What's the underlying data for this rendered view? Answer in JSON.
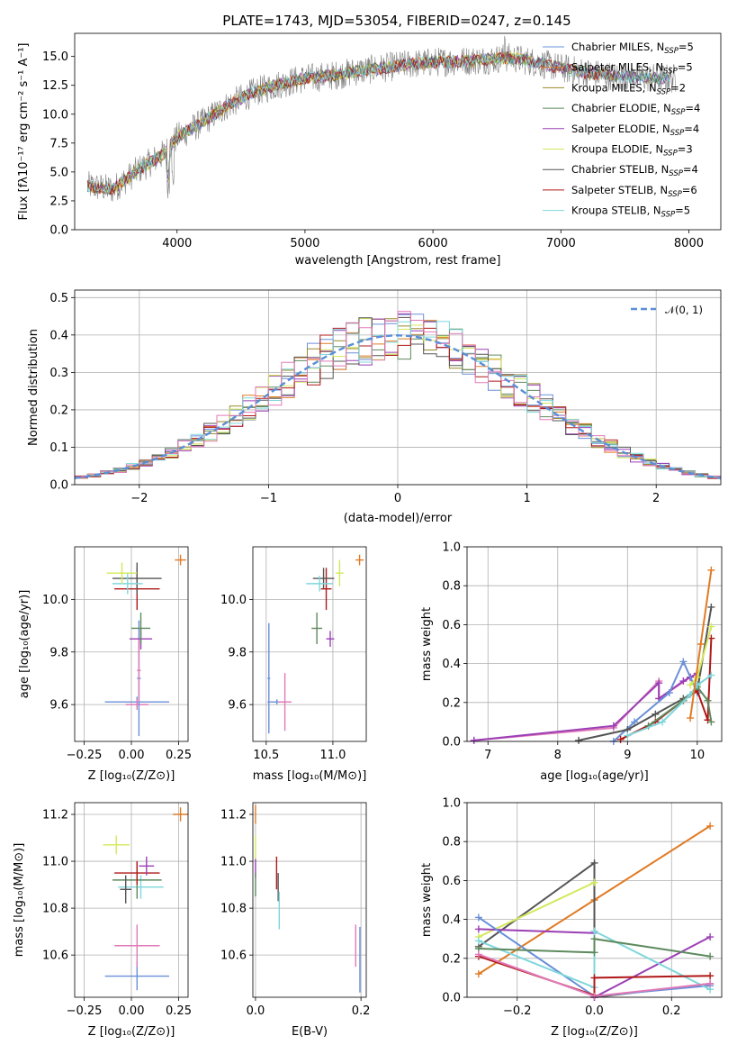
{
  "figure": {
    "title": "PLATE=1743, MJD=53054, FIBERID=0247, z=0.145"
  },
  "colors": {
    "c1": "#6a8fd8",
    "c2": "#e07b24",
    "c3": "#9a8a2a",
    "c4": "#5e8a5e",
    "c5": "#9b3fb5",
    "c6": "#d4e85a",
    "c7": "#555555",
    "c8": "#b01818",
    "c9": "#7fd7dc",
    "pink": "#e07ab8"
  },
  "chart_data": [
    {
      "id": "spectrum",
      "type": "line",
      "xlabel": "wavelength [Angstrom, rest frame]",
      "ylabel": "Flux [fλ10⁻¹⁷ erg cm⁻² s⁻¹ A⁻¹]",
      "xlim": [
        3200,
        8250
      ],
      "ylim": [
        0,
        17
      ],
      "xticks": [
        4000,
        5000,
        6000,
        7000,
        8000
      ],
      "yticks": [
        0.0,
        2.5,
        5.0,
        7.5,
        10.0,
        12.5,
        15.0
      ],
      "xtick_labels": [
        "4000",
        "5000",
        "6000",
        "7000",
        "8000"
      ],
      "ytick_labels": [
        "0.0",
        "2.5",
        "5.0",
        "7.5",
        "10.0",
        "12.5",
        "15.0"
      ],
      "continuum": [
        [
          3300,
          3.8
        ],
        [
          3500,
          3.5
        ],
        [
          3700,
          5.2
        ],
        [
          3900,
          6.6
        ],
        [
          4000,
          8.0
        ],
        [
          4200,
          9.3
        ],
        [
          4400,
          10.8
        ],
        [
          4600,
          11.9
        ],
        [
          4800,
          12.6
        ],
        [
          5000,
          13.1
        ],
        [
          5200,
          13.3
        ],
        [
          5400,
          13.7
        ],
        [
          5600,
          14.0
        ],
        [
          5800,
          14.3
        ],
        [
          6000,
          14.5
        ],
        [
          6200,
          14.6
        ],
        [
          6400,
          14.7
        ],
        [
          6600,
          14.9
        ],
        [
          6800,
          14.5
        ],
        [
          7000,
          14.0
        ],
        [
          7200,
          13.6
        ],
        [
          7400,
          13.3
        ],
        [
          7600,
          13.2
        ],
        [
          7800,
          13.1
        ]
      ],
      "series": [
        {
          "name": "Chabrier MILES, N",
          "sub": "SSP",
          "suffix": "=5",
          "color": "#6a8fd8"
        },
        {
          "name": "Salpeter MILES, N",
          "sub": "SSP",
          "suffix": "=5",
          "color": "#e07b24"
        },
        {
          "name": "Kroupa MILES, N",
          "sub": "SSP",
          "suffix": "=2",
          "color": "#9a8a2a"
        },
        {
          "name": "Chabrier ELODIE, N",
          "sub": "SSP",
          "suffix": "=4",
          "color": "#5e8a5e"
        },
        {
          "name": "Salpeter ELODIE, N",
          "sub": "SSP",
          "suffix": "=4",
          "color": "#9b3fb5"
        },
        {
          "name": "Kroupa ELODIE, N",
          "sub": "SSP",
          "suffix": "=3",
          "color": "#d4e85a"
        },
        {
          "name": "Chabrier STELIB, N",
          "sub": "SSP",
          "suffix": "=4",
          "color": "#555555"
        },
        {
          "name": "Salpeter STELIB, N",
          "sub": "SSP",
          "suffix": "=6",
          "color": "#b01818"
        },
        {
          "name": "Kroupa STELIB, N",
          "sub": "SSP",
          "suffix": "=5",
          "color": "#7fd7dc"
        }
      ]
    },
    {
      "id": "residuals",
      "type": "step-histogram",
      "xlabel": "(data-model)/error",
      "ylabel": "Normed distribution",
      "xlim": [
        -2.5,
        2.5
      ],
      "ylim": [
        0,
        0.52
      ],
      "xticks": [
        -2,
        -1,
        0,
        1,
        2
      ],
      "xtick_labels": [
        "−2",
        "−1",
        "0",
        "1",
        "2"
      ],
      "yticks": [
        0.0,
        0.1,
        0.2,
        0.3,
        0.4,
        0.5
      ],
      "ytick_labels": [
        "0.0",
        "0.1",
        "0.2",
        "0.3",
        "0.4",
        "0.5"
      ],
      "bin_width": 0.1,
      "reference_label": "𝒩(0, 1)",
      "reference_color": "#5a8fd6"
    },
    {
      "id": "age-vs-Z",
      "type": "errorbar",
      "xlabel": "Z [log₁₀(Z/Z⊙)]",
      "ylabel": "age  [log₁₀(age/yr)]",
      "xlim": [
        -0.3,
        0.3
      ],
      "ylim": [
        9.46,
        10.2
      ],
      "xticks": [
        -0.25,
        0.0,
        0.25
      ],
      "xtick_labels": [
        "−0.25",
        "0.00",
        "0.25"
      ],
      "yticks": [
        9.6,
        9.8,
        10.0
      ],
      "ytick_labels": [
        "9.6",
        "9.8",
        "10.0"
      ],
      "points": [
        {
          "x": 0.03,
          "y": 9.61,
          "xerr": 0.17,
          "yerr": 0.02,
          "color": "#6a8fd8"
        },
        {
          "x": 0.03,
          "y": 9.6,
          "xerr": 0.06,
          "yerr": 0.02,
          "color": "#e07ab8"
        },
        {
          "x": 0.04,
          "y": 9.7,
          "xerr": 0.01,
          "yerr": 0.22,
          "color": "#6a8fd8"
        },
        {
          "x": 0.04,
          "y": 9.73,
          "xerr": 0.01,
          "yerr": 0.12,
          "color": "#e07ab8"
        },
        {
          "x": 0.05,
          "y": 9.85,
          "xerr": 0.06,
          "yerr": 0.04,
          "color": "#9b3fb5"
        },
        {
          "x": 0.05,
          "y": 9.89,
          "xerr": 0.05,
          "yerr": 0.06,
          "color": "#5e8a5e"
        },
        {
          "x": 0.03,
          "y": 10.04,
          "xerr": 0.12,
          "yerr": 0.08,
          "color": "#b01818"
        },
        {
          "x": 0.03,
          "y": 10.08,
          "xerr": 0.13,
          "yerr": 0.06,
          "color": "#555555"
        },
        {
          "x": -0.02,
          "y": 10.06,
          "xerr": 0.08,
          "yerr": 0.04,
          "color": "#7fd7dc"
        },
        {
          "x": -0.05,
          "y": 10.1,
          "xerr": 0.08,
          "yerr": 0.04,
          "color": "#d4e85a"
        },
        {
          "x": 0.26,
          "y": 10.15,
          "xerr": 0.03,
          "yerr": 0.02,
          "color": "#e07b24"
        }
      ]
    },
    {
      "id": "age-vs-mass",
      "type": "errorbar",
      "xlabel": "mass [log₁₀(M/M⊙)]",
      "ylabel": "",
      "xlim": [
        10.4,
        11.25
      ],
      "ylim": [
        9.46,
        10.2
      ],
      "xticks": [
        10.5,
        11.0
      ],
      "xtick_labels": [
        "10.5",
        "11.0"
      ],
      "yticks": [
        9.6,
        9.8,
        10.0
      ],
      "ytick_labels": [
        "9.6",
        "9.8",
        "10.0"
      ],
      "points": [
        {
          "x": 10.52,
          "y": 9.7,
          "xerr": 0.01,
          "yerr": 0.21,
          "color": "#6a8fd8"
        },
        {
          "x": 10.58,
          "y": 9.61,
          "xerr": 0.07,
          "yerr": 0.01,
          "color": "#6a8fd8"
        },
        {
          "x": 10.64,
          "y": 9.61,
          "xerr": 0.05,
          "yerr": 0.11,
          "color": "#e07ab8"
        },
        {
          "x": 10.88,
          "y": 9.89,
          "xerr": 0.04,
          "yerr": 0.06,
          "color": "#5e8a5e"
        },
        {
          "x": 10.98,
          "y": 9.85,
          "xerr": 0.03,
          "yerr": 0.03,
          "color": "#9b3fb5"
        },
        {
          "x": 10.95,
          "y": 10.04,
          "xerr": 0.04,
          "yerr": 0.08,
          "color": "#b01818"
        },
        {
          "x": 10.93,
          "y": 10.08,
          "xerr": 0.08,
          "yerr": 0.04,
          "color": "#555555"
        },
        {
          "x": 10.9,
          "y": 10.06,
          "xerr": 0.1,
          "yerr": 0.03,
          "color": "#7fd7dc"
        },
        {
          "x": 11.05,
          "y": 10.1,
          "xerr": 0.03,
          "yerr": 0.05,
          "color": "#d4e85a"
        },
        {
          "x": 11.2,
          "y": 10.15,
          "xerr": 0.03,
          "yerr": 0.02,
          "color": "#e07b24"
        }
      ]
    },
    {
      "id": "weight-vs-age",
      "type": "line",
      "xlabel": "age  [log₁₀(age/yr)]",
      "ylabel": "mass weight",
      "xlim": [
        6.7,
        10.35
      ],
      "ylim": [
        0,
        1.0
      ],
      "xticks": [
        7,
        8,
        9,
        10
      ],
      "xtick_labels": [
        "7",
        "8",
        "9",
        "10"
      ],
      "yticks": [
        0.0,
        0.2,
        0.4,
        0.6,
        0.8,
        1.0
      ],
      "ytick_labels": [
        "0.0",
        "0.2",
        "0.4",
        "0.6",
        "0.8",
        "1.0"
      ],
      "series": [
        {
          "color": "#e07ab8",
          "points": [
            [
              6.8,
              0.005
            ],
            [
              8.8,
              0.07
            ],
            [
              9.45,
              0.31
            ],
            [
              9.45,
              0.22
            ],
            [
              9.9,
              0.33
            ]
          ]
        },
        {
          "color": "#9b3fb5",
          "points": [
            [
              6.8,
              0.005
            ],
            [
              8.8,
              0.08
            ],
            [
              9.45,
              0.3
            ],
            [
              9.45,
              0.22
            ],
            [
              9.8,
              0.31
            ],
            [
              9.9,
              0.33
            ],
            [
              10.0,
              0.35
            ]
          ]
        },
        {
          "color": "#6a8fd8",
          "points": [
            [
              8.8,
              0.0
            ],
            [
              9.1,
              0.1
            ],
            [
              9.6,
              0.25
            ],
            [
              9.8,
              0.41
            ],
            [
              10.0,
              0.25
            ]
          ]
        },
        {
          "color": "#555555",
          "points": [
            [
              8.3,
              0.005
            ],
            [
              9.0,
              0.06
            ],
            [
              9.4,
              0.14
            ],
            [
              9.8,
              0.22
            ],
            [
              10.0,
              0.26
            ],
            [
              10.2,
              0.69
            ]
          ]
        },
        {
          "color": "#b01818",
          "points": [
            [
              8.9,
              0.01
            ],
            [
              9.4,
              0.1
            ],
            [
              9.8,
              0.21
            ],
            [
              10.0,
              0.26
            ],
            [
              10.15,
              0.11
            ],
            [
              10.2,
              0.53
            ]
          ]
        },
        {
          "color": "#5e8a5e",
          "points": [
            [
              9.3,
              0.08
            ],
            [
              9.8,
              0.21
            ],
            [
              10.0,
              0.28
            ],
            [
              10.15,
              0.21
            ],
            [
              10.2,
              0.1
            ]
          ]
        },
        {
          "color": "#7fd7dc",
          "points": [
            [
              9.0,
              0.03
            ],
            [
              9.5,
              0.1
            ],
            [
              9.9,
              0.24
            ],
            [
              10.0,
              0.29
            ],
            [
              10.2,
              0.34
            ]
          ]
        },
        {
          "color": "#d4e85a",
          "points": [
            [
              9.9,
              0.29
            ],
            [
              10.0,
              0.33
            ],
            [
              10.2,
              0.59
            ]
          ]
        },
        {
          "color": "#e07b24",
          "points": [
            [
              9.9,
              0.12
            ],
            [
              10.05,
              0.5
            ],
            [
              10.2,
              0.88
            ]
          ]
        }
      ]
    },
    {
      "id": "mass-vs-Z",
      "type": "errorbar",
      "xlabel": "Z [log₁₀(Z/Z⊙)]",
      "ylabel": "mass [log₁₀(M/M⊙)]",
      "xlim": [
        -0.3,
        0.3
      ],
      "ylim": [
        10.42,
        11.25
      ],
      "xticks": [
        -0.25,
        0.0,
        0.25
      ],
      "xtick_labels": [
        "−0.25",
        "0.00",
        "0.25"
      ],
      "yticks": [
        10.6,
        10.8,
        11.0,
        11.2
      ],
      "ytick_labels": [
        "10.6",
        "10.8",
        "11.0",
        "11.2"
      ],
      "points": [
        {
          "x": 0.03,
          "y": 10.51,
          "xerr": 0.17,
          "yerr": 0.06,
          "color": "#6a8fd8"
        },
        {
          "x": 0.03,
          "y": 10.64,
          "xerr": 0.12,
          "yerr": 0.09,
          "color": "#e07ab8"
        },
        {
          "x": 0.05,
          "y": 10.89,
          "xerr": 0.12,
          "yerr": 0.05,
          "color": "#7fd7dc"
        },
        {
          "x": 0.03,
          "y": 10.92,
          "xerr": 0.13,
          "yerr": 0.08,
          "color": "#5e8a5e"
        },
        {
          "x": -0.03,
          "y": 10.88,
          "xerr": 0.03,
          "yerr": 0.06,
          "color": "#555555"
        },
        {
          "x": 0.03,
          "y": 10.95,
          "xerr": 0.12,
          "yerr": 0.05,
          "color": "#b01818"
        },
        {
          "x": 0.08,
          "y": 10.98,
          "xerr": 0.04,
          "yerr": 0.04,
          "color": "#9b3fb5"
        },
        {
          "x": -0.08,
          "y": 11.07,
          "xerr": 0.07,
          "yerr": 0.04,
          "color": "#d4e85a"
        },
        {
          "x": 0.26,
          "y": 11.2,
          "xerr": 0.04,
          "yerr": 0.03,
          "color": "#e07b24"
        }
      ]
    },
    {
      "id": "mass-vs-ebv",
      "type": "errorbar",
      "xlabel": "E(B-V)",
      "ylabel": "",
      "xlim": [
        -0.005,
        0.21
      ],
      "ylim": [
        10.42,
        11.25
      ],
      "xticks": [
        0.0,
        0.2
      ],
      "xtick_labels": [
        "0.0",
        "0.2"
      ],
      "yticks": [
        10.6,
        10.8,
        11.0,
        11.2
      ],
      "ytick_labels": [
        "10.6",
        "10.8",
        "11.0",
        "11.2"
      ],
      "points": [
        {
          "x": 0.0,
          "y": 11.2,
          "xerr": 0.0,
          "yerr": 0.04,
          "color": "#e07b24"
        },
        {
          "x": 0.0,
          "y": 11.06,
          "xerr": 0.0,
          "yerr": 0.05,
          "color": "#d4e85a"
        },
        {
          "x": 0.0,
          "y": 10.97,
          "xerr": 0.0,
          "yerr": 0.04,
          "color": "#9b3fb5"
        },
        {
          "x": 0.0,
          "y": 10.9,
          "xerr": 0.0,
          "yerr": 0.05,
          "color": "#5e8a5e"
        },
        {
          "x": 0.04,
          "y": 10.95,
          "xerr": 0.0,
          "yerr": 0.07,
          "color": "#b01818"
        },
        {
          "x": 0.043,
          "y": 10.89,
          "xerr": 0.0,
          "yerr": 0.06,
          "color": "#555555"
        },
        {
          "x": 0.045,
          "y": 10.79,
          "xerr": 0.0,
          "yerr": 0.08,
          "color": "#7fd7dc"
        },
        {
          "x": 0.19,
          "y": 10.64,
          "xerr": 0.0,
          "yerr": 0.09,
          "color": "#e07ab8"
        },
        {
          "x": 0.198,
          "y": 10.58,
          "xerr": 0.0,
          "yerr": 0.14,
          "color": "#6a8fd8"
        }
      ]
    },
    {
      "id": "weight-vs-Z",
      "type": "line",
      "xlabel": "Z [log₁₀(Z/Z⊙)]",
      "ylabel": "mass weight",
      "xlim": [
        -0.33,
        0.33
      ],
      "ylim": [
        0,
        1.0
      ],
      "xticks": [
        -0.2,
        0.0,
        0.2
      ],
      "xtick_labels": [
        "−0.2",
        "0.0",
        "0.2"
      ],
      "yticks": [
        0.0,
        0.2,
        0.4,
        0.6,
        0.8,
        1.0
      ],
      "ytick_labels": [
        "0.0",
        "0.2",
        "0.4",
        "0.6",
        "0.8",
        "1.0"
      ],
      "series": [
        {
          "color": "#e07b24",
          "points": [
            [
              -0.3,
              0.12
            ],
            [
              0.0,
              0.5
            ],
            [
              0.3,
              0.88
            ]
          ]
        },
        {
          "color": "#555555",
          "points": [
            [
              -0.3,
              0.26
            ],
            [
              0.0,
              0.69
            ],
            [
              0.0,
              0.0
            ],
            [
              0.3,
              0.07
            ]
          ]
        },
        {
          "color": "#d4e85a",
          "points": [
            [
              -0.3,
              0.31
            ],
            [
              0.0,
              0.59
            ]
          ]
        },
        {
          "color": "#9b3fb5",
          "points": [
            [
              -0.3,
              0.35
            ],
            [
              0.0,
              0.33
            ],
            [
              0.0,
              0.0
            ],
            [
              0.3,
              0.31
            ]
          ]
        },
        {
          "color": "#6a8fd8",
          "points": [
            [
              -0.3,
              0.41
            ],
            [
              0.0,
              0.005
            ],
            [
              0.3,
              0.06
            ]
          ]
        },
        {
          "color": "#7fd7dc",
          "points": [
            [
              -0.3,
              0.29
            ],
            [
              0.0,
              0.05
            ],
            [
              0.0,
              0.34
            ],
            [
              0.3,
              0.04
            ]
          ]
        },
        {
          "color": "#5e8a5e",
          "points": [
            [
              -0.3,
              0.25
            ],
            [
              0.0,
              0.23
            ],
            [
              0.0,
              0.3
            ],
            [
              0.3,
              0.21
            ]
          ]
        },
        {
          "color": "#b01818",
          "points": [
            [
              -0.3,
              0.21
            ],
            [
              0.0,
              0.01
            ],
            [
              0.0,
              0.1
            ],
            [
              0.3,
              0.11
            ]
          ]
        },
        {
          "color": "#e07ab8",
          "points": [
            [
              -0.3,
              0.22
            ],
            [
              0.0,
              0.005
            ],
            [
              0.3,
              0.07
            ]
          ]
        }
      ]
    }
  ]
}
